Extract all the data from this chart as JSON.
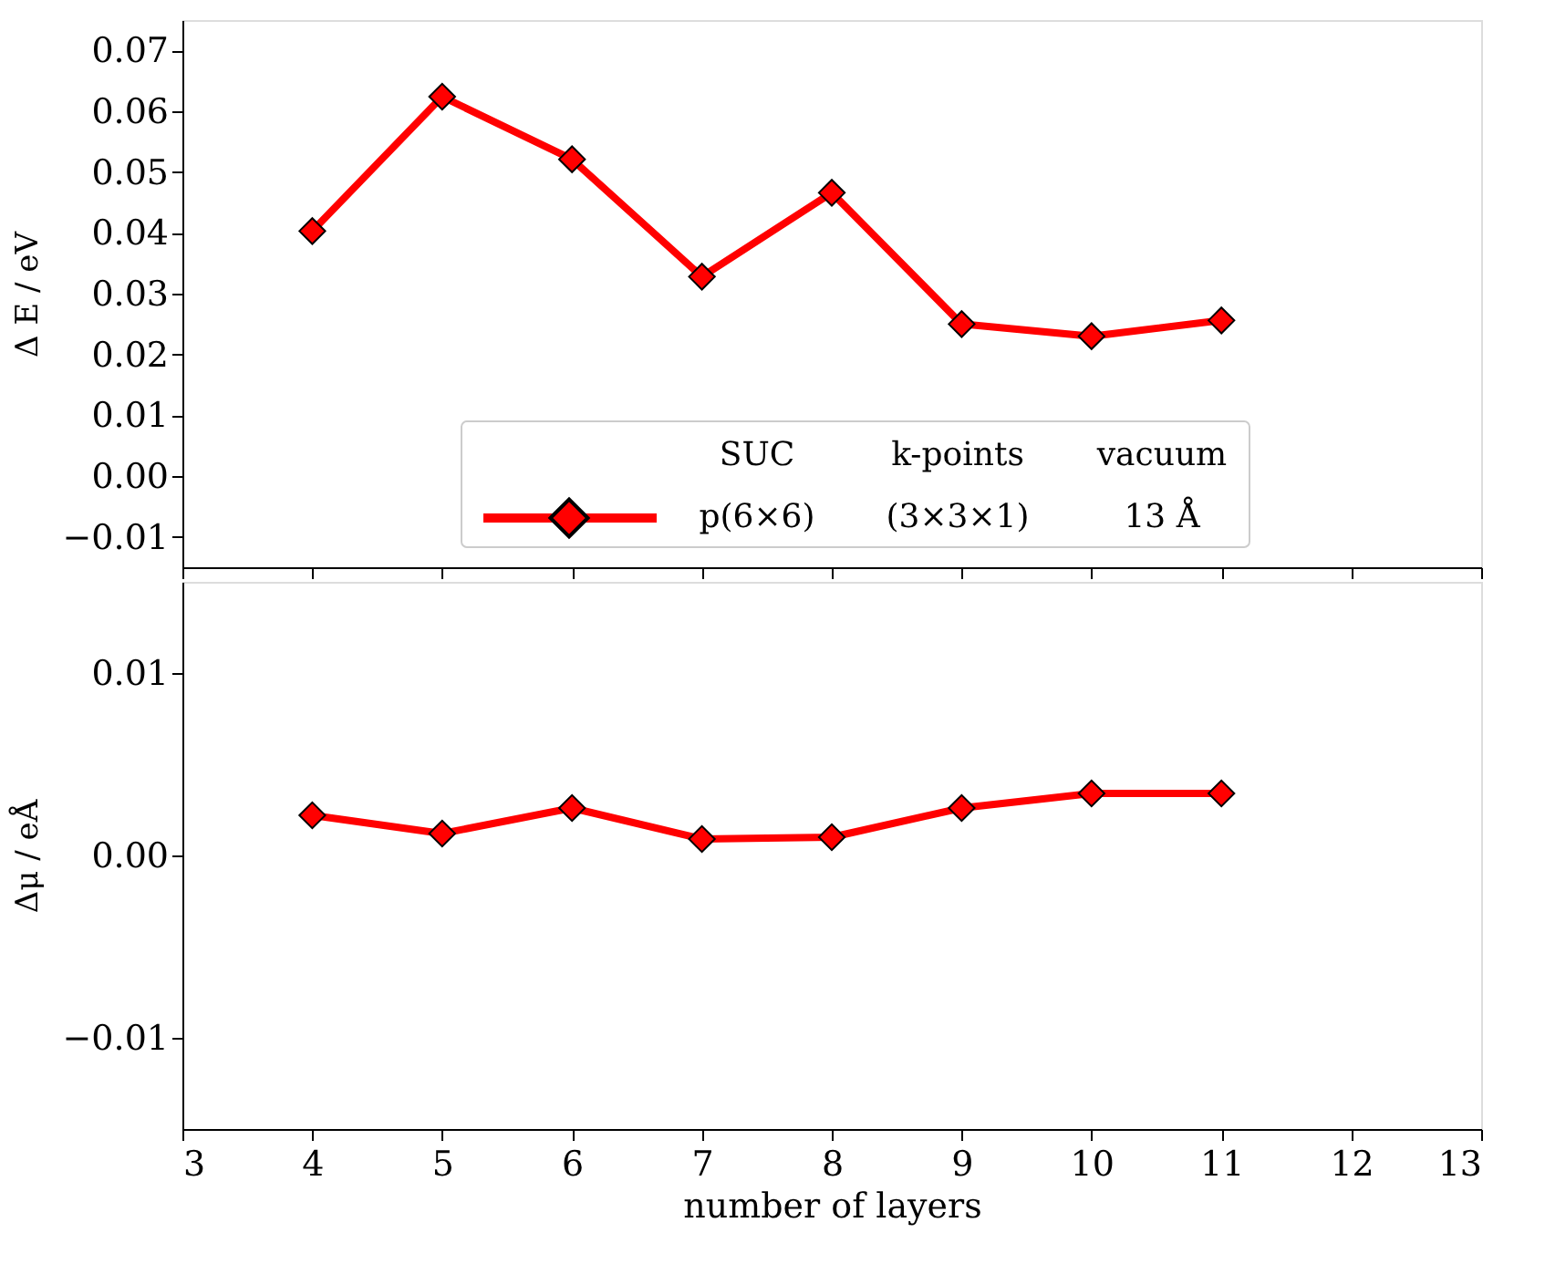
{
  "chart_data": [
    {
      "type": "line",
      "ylabel": "Δ E / eV",
      "x": [
        4,
        5,
        6,
        7,
        8,
        9,
        10,
        11
      ],
      "series": [
        {
          "name": "p(6×6)",
          "color": "#ff0000",
          "values": [
            0.0403,
            0.0624,
            0.0521,
            0.0328,
            0.0466,
            0.025,
            0.023,
            0.0256
          ]
        }
      ],
      "xlim": [
        3,
        13
      ],
      "xticks": [
        3,
        4,
        5,
        6,
        7,
        8,
        9,
        10,
        11,
        12,
        13
      ],
      "ylim": [
        -0.015,
        0.075
      ],
      "yticks": [
        {
          "value": -0.01,
          "label": "−0.01"
        },
        {
          "value": 0,
          "label": "0.00"
        },
        {
          "value": 0.01,
          "label": "0.01"
        },
        {
          "value": 0.02,
          "label": "0.02"
        },
        {
          "value": 0.03,
          "label": "0.03"
        },
        {
          "value": 0.04,
          "label": "0.04"
        },
        {
          "value": 0.05,
          "label": "0.05"
        },
        {
          "value": 0.06,
          "label": "0.06"
        },
        {
          "value": 0.07,
          "label": "0.07"
        }
      ],
      "tick_labels": "y",
      "marker": "diamond",
      "line_style": "solid",
      "grid": false,
      "legend": "bottom",
      "annotations": [
        "SUC",
        "k-points",
        "vacuum",
        "(3×3×1)",
        "13 Å"
      ]
    },
    {
      "type": "line",
      "ylabel": "Δμ / eÅ",
      "xlabel": "number of layers",
      "x": [
        4,
        5,
        6,
        7,
        8,
        9,
        10,
        11
      ],
      "series": [
        {
          "color": "#ff0000",
          "values": [
            0.0022,
            0.0012,
            0.0026,
            0.0009,
            0.001,
            0.0026,
            0.0034,
            0.0034
          ]
        }
      ],
      "xlim": [
        3,
        13
      ],
      "xticks": [
        3,
        4,
        5,
        6,
        7,
        8,
        9,
        10,
        11,
        12,
        13
      ],
      "ylim": [
        -0.015,
        0.015
      ],
      "yticks": [
        {
          "value": -0.01,
          "label": "−0.01"
        },
        {
          "value": 0,
          "label": "0.00"
        },
        {
          "value": 0.01,
          "label": "0.01"
        }
      ],
      "marker": "diamond",
      "line_style": "solid",
      "grid": false
    }
  ]
}
